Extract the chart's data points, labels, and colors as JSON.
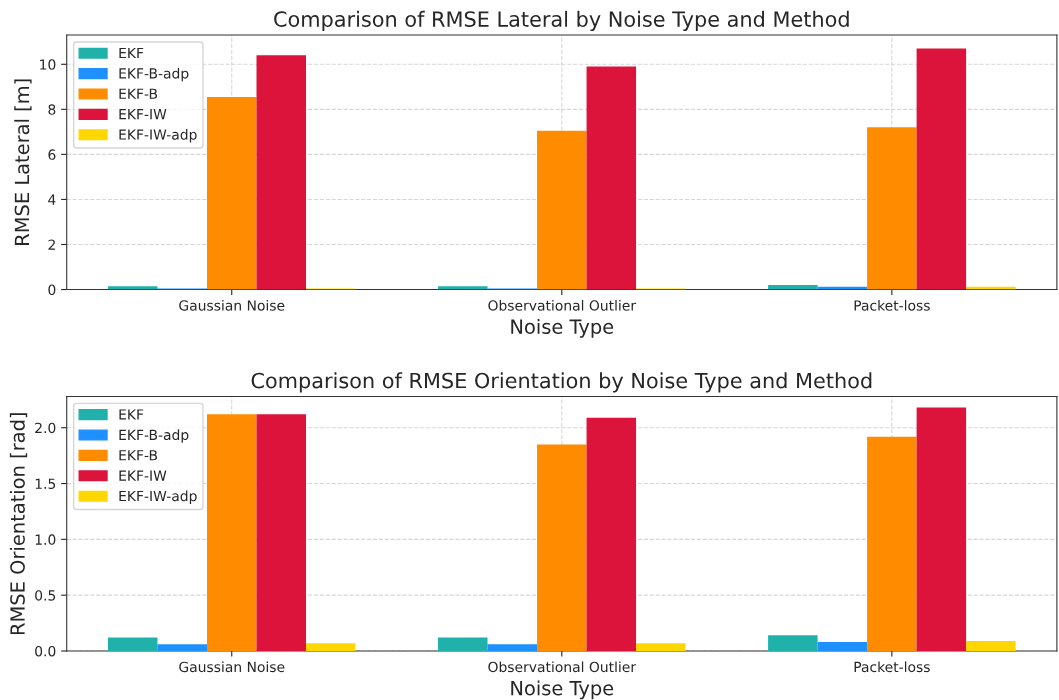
{
  "chart_data": [
    {
      "type": "bar",
      "title": "Comparison of RMSE Lateral by Noise Type and Method",
      "xlabel": "Noise Type",
      "ylabel": "RMSE Lateral [m]",
      "categories": [
        "Gaussian Noise",
        "Observational Outlier",
        "Packet-loss"
      ],
      "series": [
        {
          "name": "EKF",
          "color": "#20b2aa",
          "values": [
            0.15,
            0.15,
            0.2
          ]
        },
        {
          "name": "EKF-B-adp",
          "color": "#1e90ff",
          "values": [
            0.05,
            0.05,
            0.12
          ]
        },
        {
          "name": "EKF-B",
          "color": "#ff8c00",
          "values": [
            8.55,
            7.05,
            7.2
          ]
        },
        {
          "name": "EKF-IW",
          "color": "#dc143c",
          "values": [
            10.4,
            9.9,
            10.7
          ]
        },
        {
          "name": "EKF-IW-adp",
          "color": "#ffd700",
          "values": [
            0.05,
            0.05,
            0.12
          ]
        }
      ],
      "ylim": [
        0,
        11.3
      ],
      "yticks": [
        0,
        2,
        4,
        6,
        8,
        10
      ],
      "grid": true,
      "legend": "top left"
    },
    {
      "type": "bar",
      "title": "Comparison of RMSE Orientation by Noise Type and Method",
      "xlabel": "Noise Type",
      "ylabel": "RMSE Orientation [rad]",
      "categories": [
        "Gaussian Noise",
        "Observational Outlier",
        "Packet-loss"
      ],
      "series": [
        {
          "name": "EKF",
          "color": "#20b2aa",
          "values": [
            0.12,
            0.12,
            0.14
          ]
        },
        {
          "name": "EKF-B-adp",
          "color": "#1e90ff",
          "values": [
            0.06,
            0.06,
            0.08
          ]
        },
        {
          "name": "EKF-B",
          "color": "#ff8c00",
          "values": [
            2.12,
            1.85,
            1.92
          ]
        },
        {
          "name": "EKF-IW",
          "color": "#dc143c",
          "values": [
            2.12,
            2.09,
            2.18
          ]
        },
        {
          "name": "EKF-IW-adp",
          "color": "#ffd700",
          "values": [
            0.07,
            0.07,
            0.09
          ]
        }
      ],
      "ylim": [
        0,
        2.28
      ],
      "yticks": [
        {
          "value": 0,
          "label": "0.0"
        },
        0.5,
        {
          "value": 1,
          "label": "1.0"
        },
        1.5,
        {
          "value": 2,
          "label": "2.0"
        }
      ],
      "grid": true,
      "legend": "top left"
    }
  ]
}
